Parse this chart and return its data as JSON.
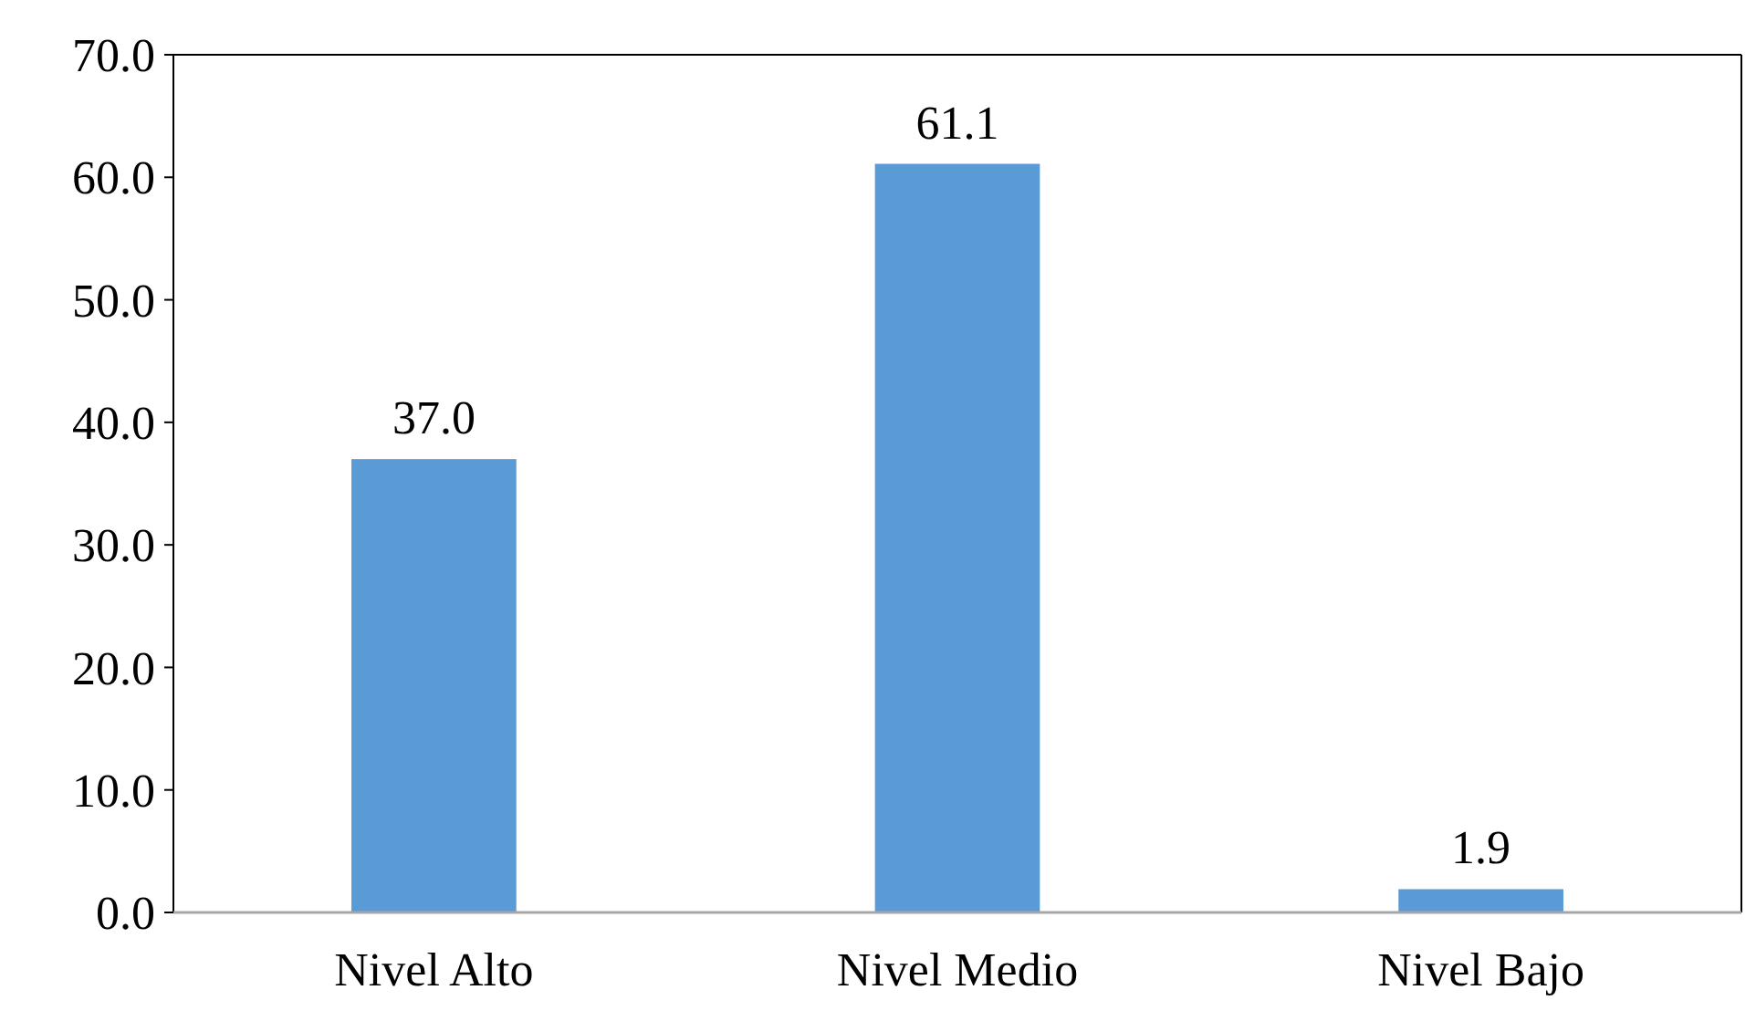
{
  "chart_data": {
    "type": "bar",
    "categories": [
      "Nivel Alto",
      "Nivel Medio",
      "Nivel Bajo"
    ],
    "values": [
      37.0,
      61.1,
      1.9
    ],
    "value_labels": [
      "37.0",
      "61.1",
      "1.9"
    ],
    "color": "#5b9bd5",
    "ylim": [
      0,
      70
    ],
    "yticks": [
      {
        "value": 0,
        "label": "0.0"
      },
      {
        "value": 10,
        "label": "10.0"
      },
      {
        "value": 20,
        "label": "20.0"
      },
      {
        "value": 30,
        "label": "30.0"
      },
      {
        "value": 40,
        "label": "40.0"
      },
      {
        "value": 50,
        "label": "50.0"
      },
      {
        "value": 60,
        "label": "60.0"
      },
      {
        "value": 70,
        "label": "70.0"
      }
    ],
    "grid": false
  }
}
